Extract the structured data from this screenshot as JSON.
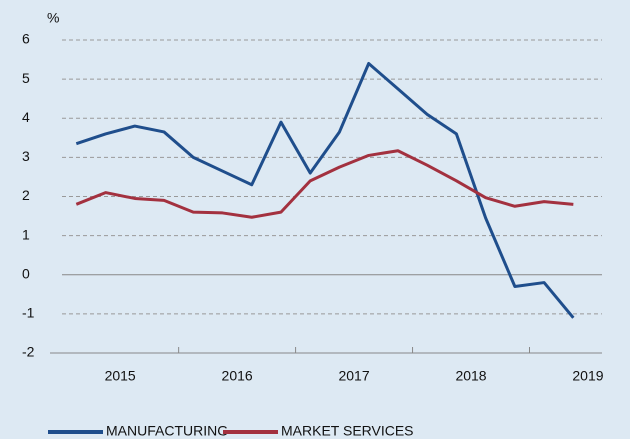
{
  "chart_data": {
    "type": "line",
    "y_unit": "%",
    "x": [
      2015.125,
      2015.375,
      2015.625,
      2015.875,
      2016.125,
      2016.375,
      2016.625,
      2016.875,
      2017.125,
      2017.375,
      2017.625,
      2017.875,
      2018.125,
      2018.375,
      2018.625,
      2018.875,
      2019.125,
      2019.375
    ],
    "series": [
      {
        "name": "MANUFACTURING",
        "color": "#1f4e8c",
        "values": [
          3.35,
          3.6,
          3.8,
          3.65,
          3.0,
          2.65,
          2.3,
          3.9,
          2.6,
          3.65,
          5.4,
          4.75,
          4.1,
          3.6,
          1.45,
          -0.3,
          -0.2,
          -1.1
        ]
      },
      {
        "name": "MARKET SERVICES",
        "color": "#a3313f",
        "values": [
          1.8,
          2.1,
          1.95,
          1.9,
          1.6,
          1.58,
          1.47,
          1.6,
          2.4,
          2.75,
          3.05,
          3.17,
          2.8,
          2.4,
          1.97,
          1.75,
          1.87,
          1.8
        ]
      }
    ],
    "xlim": [
      2014.9,
      2019.62
    ],
    "xticks": [
      {
        "value": 2015.5,
        "label": "2015"
      },
      {
        "value": 2016.5,
        "label": "2016"
      },
      {
        "value": 2017.5,
        "label": "2017"
      },
      {
        "value": 2018.5,
        "label": "2018"
      },
      {
        "value": 2019.5,
        "label": "2019"
      }
    ],
    "ylim": [
      -2,
      6
    ],
    "yticks": [
      -2,
      -1,
      0,
      1,
      2,
      3,
      4,
      5,
      6
    ],
    "grid": true,
    "legend": "bottom-left",
    "background": "#dde9f3"
  }
}
